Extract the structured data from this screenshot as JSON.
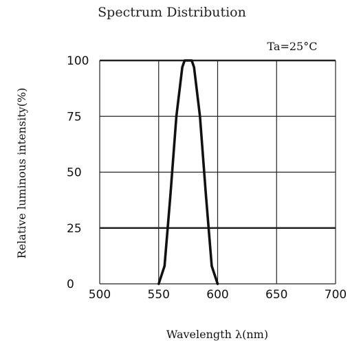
{
  "chart_data": {
    "type": "line",
    "title": "Spectrum Distribution",
    "annotation": "Ta=25°C",
    "xlabel": "Wavelength  λ(nm)",
    "ylabel": "Relative luminous intensity(%)",
    "xlim": [
      500,
      700
    ],
    "ylim": [
      0,
      100
    ],
    "x_ticks": [
      "500",
      "550",
      "600",
      "650",
      "700"
    ],
    "y_ticks": [
      "100",
      "75",
      "50",
      "25",
      "0"
    ],
    "grid": true,
    "series": [
      {
        "x": [
          550,
          555,
          560,
          565,
          570,
          572,
          575,
          578,
          580,
          585,
          590,
          595,
          600
        ],
        "y": [
          0,
          8,
          40,
          75,
          97,
          100,
          100,
          100,
          97,
          75,
          40,
          8,
          0
        ]
      }
    ],
    "colors": {
      "line": "#111111",
      "grid": "#222222"
    }
  }
}
